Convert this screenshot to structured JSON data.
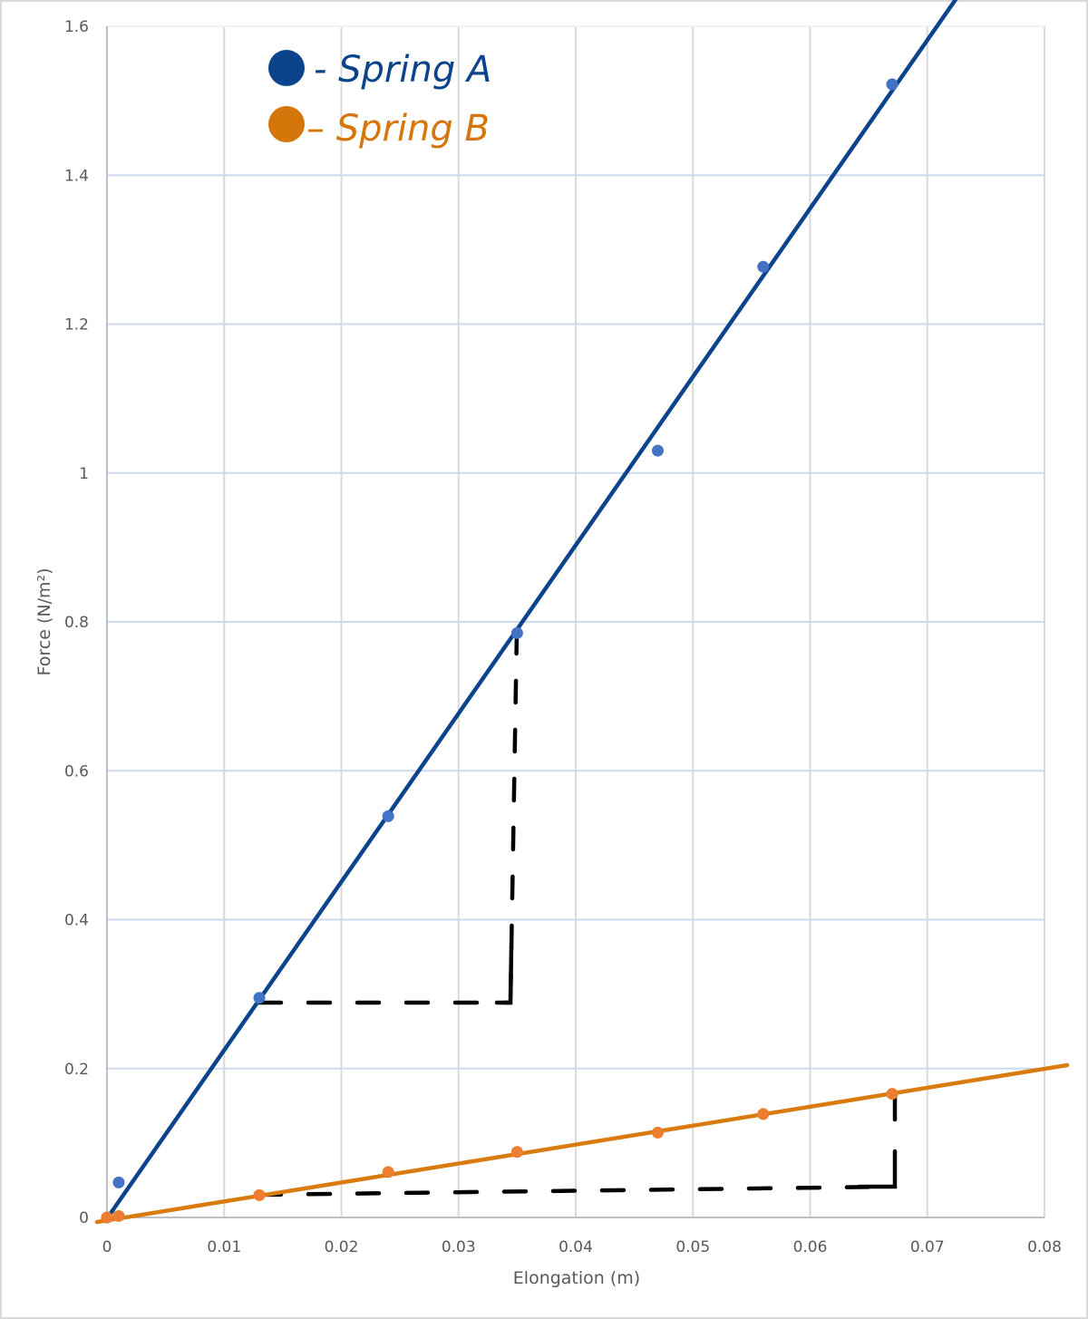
{
  "chart_data": {
    "type": "scatter",
    "title": "",
    "xlabel": "Elongation (m)",
    "ylabel": "Force (N/m²)",
    "xlim": [
      0,
      0.08
    ],
    "ylim": [
      0,
      1.6
    ],
    "xticks": [
      "0",
      "0.01",
      "0.02",
      "0.03",
      "0.04",
      "0.05",
      "0.06",
      "0.07",
      "0.08"
    ],
    "yticks": [
      "0",
      "0.2",
      "0.4",
      "0.6",
      "0.8",
      "1",
      "1.2",
      "1.4",
      "1.6"
    ],
    "grid": true,
    "legend_position": "top-left (hand-drawn)",
    "series": [
      {
        "name": "Spring A",
        "marker_color": "#4472c4",
        "trendline_color": "#0b448a",
        "x": [
          0,
          0.001,
          0.013,
          0.024,
          0.035,
          0.047,
          0.056,
          0.067
        ],
        "y": [
          0,
          0.047,
          0.295,
          0.539,
          0.785,
          1.03,
          1.277,
          1.522
        ],
        "trendline": {
          "type": "linear",
          "slope": 22.5,
          "intercept": 0
        }
      },
      {
        "name": "Spring B",
        "marker_color": "#ed7d31",
        "trendline_color": "#d97b0f",
        "x": [
          0,
          0.001,
          0.013,
          0.024,
          0.035,
          0.047,
          0.056,
          0.067
        ],
        "y": [
          0,
          0.002,
          0.03,
          0.061,
          0.088,
          0.114,
          0.139,
          0.166
        ],
        "trendline": {
          "type": "linear",
          "slope": 2.5,
          "intercept": 0
        }
      }
    ],
    "annotations": [
      {
        "type": "slope-triangle",
        "series": "Spring A",
        "from": [
          0.013,
          0.295
        ],
        "corner": [
          0.0345,
          0.289
        ],
        "to": [
          0.035,
          0.785
        ],
        "style": "black dashed"
      },
      {
        "type": "slope-triangle",
        "series": "Spring B",
        "from": [
          0.013,
          0.03
        ],
        "corner": [
          0.067,
          0.041
        ],
        "to": [
          0.067,
          0.166
        ],
        "style": "black dashed"
      }
    ]
  },
  "legend": {
    "items": [
      {
        "label": "- Spring A",
        "color": "#0b448a"
      },
      {
        "label": "– Spring B",
        "color": "#d4760a"
      }
    ]
  }
}
